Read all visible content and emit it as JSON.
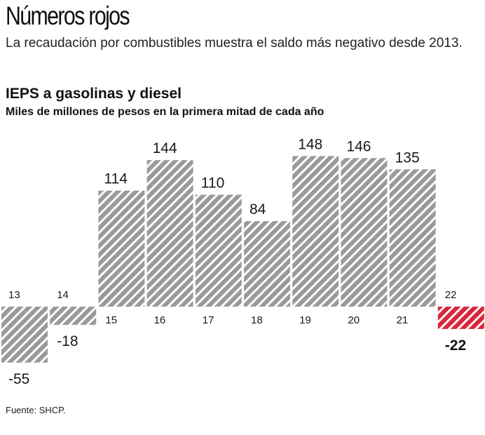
{
  "header": {
    "title": "Números rojos",
    "subtitle": "La recaudación por combustibles muestra el saldo más negativo desde 2013."
  },
  "chart_data": {
    "type": "bar",
    "title": "IEPS a gasolinas y diesel",
    "subtitle": "Miles de millones de pesos en la primera mitad de cada año",
    "categories": [
      "13",
      "14",
      "15",
      "16",
      "17",
      "18",
      "19",
      "20",
      "21",
      "22"
    ],
    "values": [
      -55,
      -18,
      114,
      144,
      110,
      84,
      148,
      146,
      135,
      -22
    ],
    "value_labels": [
      "-55",
      "-18",
      "114",
      "144",
      "110",
      "84",
      "148",
      "146",
      "135",
      "-22"
    ],
    "highlight_index": 9,
    "colors": {
      "bar": "#9a9a9a",
      "bar_stripe": "#ffffff",
      "highlight": "#d8263a",
      "highlight_stripe": "#ffffff"
    },
    "pattern": "diagonal-hatch",
    "grid": false,
    "legend": "none"
  },
  "footer": {
    "source": "Fuente: SHCP."
  }
}
